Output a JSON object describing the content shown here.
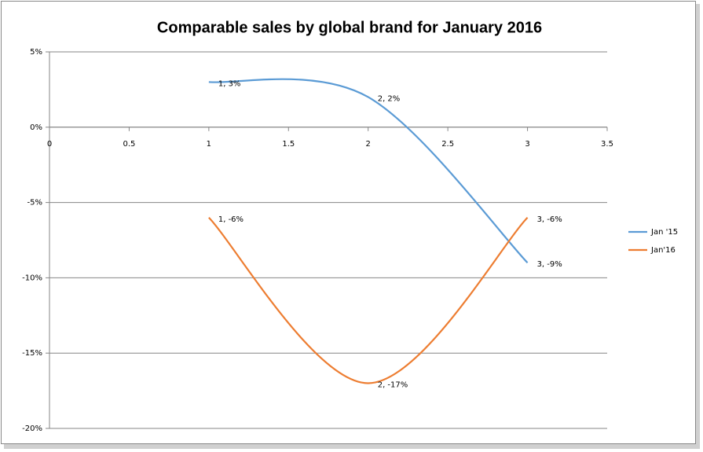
{
  "chart_data": {
    "type": "line",
    "title": "Comparable sales by global brand for January 2016",
    "x": [
      1,
      2,
      3
    ],
    "series": [
      {
        "name": "Jan '15",
        "color": "#5b9bd5",
        "values": [
          3,
          2,
          -9
        ],
        "value_labels": [
          "1, 3%",
          "2, 2%",
          "3, -9%"
        ]
      },
      {
        "name": "Jan'16",
        "color": "#ed7d31",
        "values": [
          -6,
          -17,
          -6
        ],
        "value_labels": [
          "1, -6%",
          "2, -17%",
          "3, -6%"
        ]
      }
    ],
    "xlim": [
      0,
      3.5
    ],
    "xticks": [
      0,
      0.5,
      1,
      1.5,
      2,
      2.5,
      3,
      3.5
    ],
    "ylim": [
      -20,
      5
    ],
    "yticks": [
      {
        "value": 5,
        "label": "5%"
      },
      {
        "value": 0,
        "label": "0%"
      },
      {
        "value": -5,
        "label": "-5%"
      },
      {
        "value": -10,
        "label": "-10%"
      },
      {
        "value": -15,
        "label": "-15%"
      },
      {
        "value": -20,
        "label": "-20%"
      }
    ],
    "grid": true,
    "smooth": true,
    "legend": "right"
  }
}
